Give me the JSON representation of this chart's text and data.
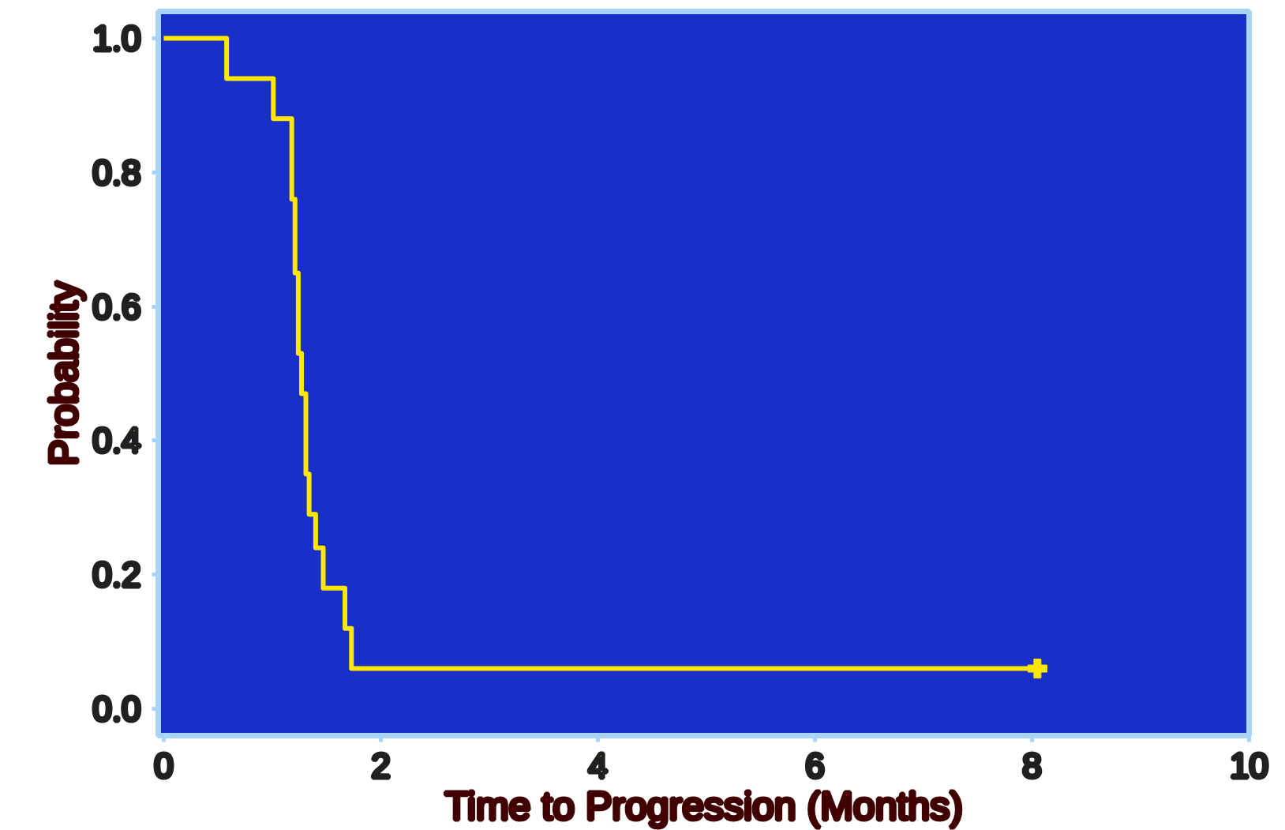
{
  "chart_data": {
    "type": "step",
    "xlabel": "Time to Progression (Months)",
    "ylabel": "Probability",
    "x": [
      0,
      0.58,
      1.01,
      1.18,
      1.21,
      1.24,
      1.27,
      1.31,
      1.34,
      1.4,
      1.47,
      1.67,
      1.73,
      8.05
    ],
    "series": [
      {
        "color": "#ffe800",
        "values": [
          1.0,
          0.94,
          0.88,
          0.76,
          0.65,
          0.53,
          0.47,
          0.35,
          0.29,
          0.24,
          0.18,
          0.12,
          0.06,
          0.06
        ]
      },
      {
        "type": "scatter",
        "marker": "cross",
        "color": "#ffe800",
        "x": [
          8.05
        ],
        "values": [
          0.06
        ]
      }
    ],
    "xlim": [
      -0.05,
      10
    ],
    "ylim": [
      -0.04,
      1.04
    ],
    "xticks": [
      0,
      2,
      4,
      6,
      8,
      10
    ],
    "yticks": [
      {
        "value": 0,
        "label": "0.0"
      },
      {
        "value": 0.2,
        "label": "0.2"
      },
      {
        "value": 0.4,
        "label": "0.4"
      },
      {
        "value": 0.6,
        "label": "0.6"
      },
      {
        "value": 0.8,
        "label": "0.8"
      },
      {
        "value": 1,
        "label": "1.0"
      }
    ],
    "grid": false,
    "line_style": "solid"
  }
}
